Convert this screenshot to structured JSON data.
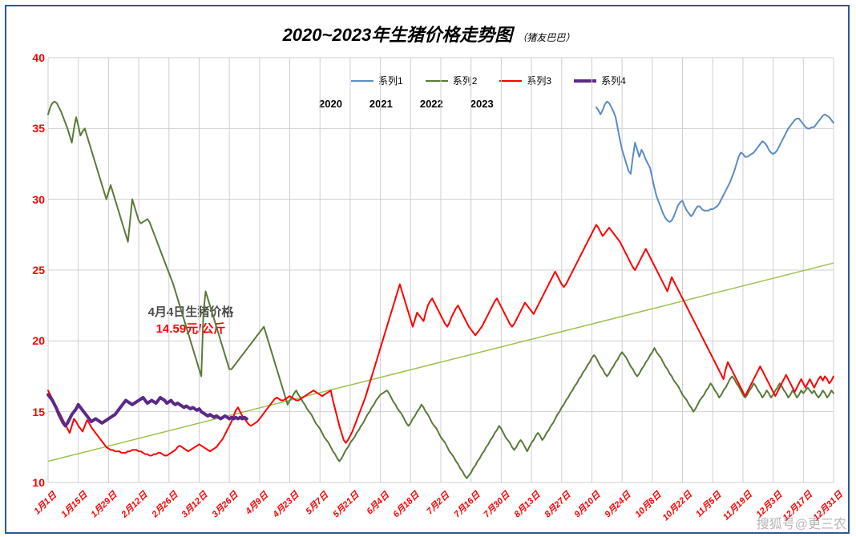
{
  "title_main": "2020~2023年生猪价格走势图",
  "title_sub": "（猪友巴巴）",
  "watermark": "搜狐号@更三农",
  "chart": {
    "type": "line",
    "background_color": "#ffffff",
    "frame_border_color": "#2a5a94",
    "axis_color": "#808080",
    "grid_color": "#cfcfcf",
    "ylim": [
      10,
      40
    ],
    "ytick_step": 5,
    "ytick_label_color": "#ff0000",
    "ytick_fontsize": 14,
    "x_n": 365,
    "xtick_labels": [
      "1月1日",
      "1月15日",
      "1月29日",
      "2月12日",
      "2月26日",
      "3月12日",
      "3月26日",
      "4月9日",
      "4月23日",
      "5月7日",
      "5月21日",
      "6月4日",
      "6月18日",
      "7月2日",
      "7月16日",
      "7月30日",
      "8月13日",
      "8月27日",
      "9月10日",
      "9月24日",
      "10月8日",
      "10月22日",
      "11月5日",
      "11月19日",
      "12月3日",
      "12月17日",
      "12月31日"
    ],
    "xtick_label_color": "#ff0000",
    "xtick_fontsize": 11,
    "trendline": {
      "color": "#9cc24d",
      "width": 1.5,
      "y_start": 11.5,
      "y_end": 25.5
    },
    "legend": {
      "items": [
        {
          "label": "系列1",
          "color": "#5b8cc4"
        },
        {
          "label": "系列2",
          "color": "#5a7a3a"
        },
        {
          "label": "系列3",
          "color": "#ff0000"
        },
        {
          "label": "系列4",
          "color": "#5a2a86"
        }
      ]
    },
    "year_labels": [
      "2020",
      "2021",
      "2022",
      "2023"
    ],
    "annotation": {
      "line1": "4月4日生猪价格",
      "line2": "14.59元/公斤"
    },
    "series": [
      {
        "name": "系列1_2020",
        "color": "#5b8cc4",
        "width": 2,
        "start_x": 254,
        "y": [
          36.5,
          36.3,
          36.0,
          36.3,
          36.7,
          36.9,
          36.8,
          36.5,
          36.2,
          35.8,
          35.0,
          34.2,
          33.5,
          33.0,
          32.5,
          32.0,
          31.8,
          33.0,
          34.0,
          33.5,
          33.0,
          33.5,
          33.2,
          32.8,
          32.5,
          32.2,
          31.5,
          30.8,
          30.2,
          29.8,
          29.4,
          29.0,
          28.7,
          28.5,
          28.4,
          28.5,
          28.8,
          29.2,
          29.6,
          29.8,
          29.9,
          29.5,
          29.2,
          29.0,
          28.8,
          29.0,
          29.3,
          29.5,
          29.5,
          29.3,
          29.2,
          29.2,
          29.2,
          29.3,
          29.3,
          29.4,
          29.5,
          29.7,
          30.0,
          30.3,
          30.6,
          30.9,
          31.2,
          31.6,
          32.0,
          32.5,
          33.0,
          33.3,
          33.2,
          33.0,
          33.0,
          33.1,
          33.2,
          33.3,
          33.5,
          33.7,
          33.9,
          34.1,
          34.0,
          33.8,
          33.5,
          33.3,
          33.2,
          33.3,
          33.5,
          33.8,
          34.1,
          34.4,
          34.7,
          35.0,
          35.2,
          35.4,
          35.6,
          35.7,
          35.7,
          35.5,
          35.3,
          35.1,
          35.0,
          35.0,
          35.1,
          35.1,
          35.3,
          35.5,
          35.7,
          35.9,
          36.0,
          35.9,
          35.8,
          35.6,
          35.4
        ]
      },
      {
        "name": "系列2_2021",
        "color": "#5a7a3a",
        "width": 2,
        "start_x": 0,
        "y": [
          36.0,
          36.5,
          36.8,
          36.9,
          36.8,
          36.5,
          36.2,
          35.8,
          35.4,
          35.0,
          34.5,
          34.0,
          35.0,
          35.8,
          35.2,
          34.5,
          34.8,
          35.0,
          34.5,
          34.0,
          33.5,
          33.0,
          32.5,
          32.0,
          31.5,
          31.0,
          30.5,
          30.0,
          30.5,
          31.0,
          30.5,
          30.0,
          29.5,
          29.0,
          28.5,
          28.0,
          27.5,
          27.0,
          28.5,
          30.0,
          29.5,
          29.0,
          28.5,
          28.3,
          28.4,
          28.5,
          28.6,
          28.4,
          28.0,
          27.6,
          27.2,
          26.8,
          26.4,
          26.0,
          25.6,
          25.2,
          24.8,
          24.4,
          24.0,
          23.5,
          23.0,
          22.5,
          22.0,
          21.5,
          21.0,
          20.5,
          20.0,
          19.5,
          19.0,
          18.5,
          18.0,
          17.5,
          22.0,
          23.5,
          23.0,
          22.5,
          22.0,
          21.5,
          21.0,
          20.5,
          20.0,
          19.5,
          19.0,
          18.5,
          18.0,
          18.0,
          18.2,
          18.4,
          18.6,
          18.8,
          19.0,
          19.2,
          19.4,
          19.6,
          19.8,
          20.0,
          20.2,
          20.4,
          20.6,
          20.8,
          21.0,
          20.5,
          20.0,
          19.5,
          19.0,
          18.5,
          18.0,
          17.5,
          17.0,
          16.5,
          16.0,
          15.5,
          15.8,
          16.0,
          16.3,
          16.5,
          16.2,
          16.0,
          15.7,
          15.5,
          15.2,
          15.0,
          14.8,
          14.5,
          14.2,
          14.0,
          13.8,
          13.5,
          13.2,
          13.0,
          12.8,
          12.5,
          12.2,
          12.0,
          11.7,
          11.5,
          11.7,
          12.0,
          12.3,
          12.5,
          12.8,
          13.0,
          13.2,
          13.5,
          13.7,
          14.0,
          14.2,
          14.5,
          14.8,
          15.0,
          15.3,
          15.5,
          15.8,
          16.0,
          16.2,
          16.3,
          16.4,
          16.5,
          16.3,
          16.0,
          15.7,
          15.5,
          15.2,
          15.0,
          14.8,
          14.5,
          14.2,
          14.0,
          14.2,
          14.5,
          14.7,
          15.0,
          15.2,
          15.5,
          15.3,
          15.0,
          14.8,
          14.5,
          14.2,
          14.0,
          13.8,
          13.5,
          13.2,
          13.0,
          12.8,
          12.5,
          12.2,
          12.0,
          11.8,
          11.5,
          11.3,
          11.0,
          10.8,
          10.5,
          10.3,
          10.5,
          10.7,
          11.0,
          11.2,
          11.5,
          11.7,
          12.0,
          12.2,
          12.5,
          12.7,
          13.0,
          13.2,
          13.5,
          13.7,
          14.0,
          13.8,
          13.5,
          13.2,
          13.0,
          12.8,
          12.5,
          12.3,
          12.5,
          12.8,
          13.0,
          12.8,
          12.5,
          12.2,
          12.5,
          12.8,
          13.0,
          13.3,
          13.5,
          13.3,
          13.0,
          13.2,
          13.5,
          13.7,
          14.0,
          14.2,
          14.5,
          14.8,
          15.0,
          15.3,
          15.5,
          15.8,
          16.0,
          16.3,
          16.5,
          16.8,
          17.0,
          17.3,
          17.5,
          17.8,
          18.0,
          18.3,
          18.5,
          18.8,
          19.0,
          18.8,
          18.5,
          18.2,
          18.0,
          17.7,
          17.5,
          17.7,
          18.0,
          18.2,
          18.5,
          18.7,
          19.0,
          19.2,
          19.0,
          18.8,
          18.5,
          18.2,
          18.0,
          17.7,
          17.5,
          17.7,
          18.0,
          18.2,
          18.5,
          18.7,
          19.0,
          19.2,
          19.5,
          19.2,
          19.0,
          18.8,
          18.5,
          18.2,
          18.0,
          17.7,
          17.5,
          17.2,
          17.0,
          16.8,
          16.5,
          16.2,
          16.0,
          15.8,
          15.5,
          15.3,
          15.0,
          15.2,
          15.5,
          15.8,
          16.0,
          16.2,
          16.5,
          16.7,
          17.0,
          16.8,
          16.5,
          16.3,
          16.0,
          16.2,
          16.5,
          16.7,
          17.0,
          17.3,
          17.5,
          17.3,
          17.0,
          16.8,
          16.5,
          16.2,
          16.0,
          16.2,
          16.5,
          16.7,
          17.0,
          16.8,
          16.5,
          16.3,
          16.0,
          16.2,
          16.5,
          16.3,
          16.0,
          16.2,
          16.5,
          16.7,
          17.0,
          16.8,
          16.5,
          16.3,
          16.0,
          16.2,
          16.5,
          16.3,
          16.0,
          16.2,
          16.5,
          16.3,
          16.5,
          16.7,
          16.5,
          16.3,
          16.5,
          16.2,
          16.0,
          16.2,
          16.5,
          16.3,
          16.0,
          16.2,
          16.5,
          16.3
        ]
      },
      {
        "name": "系列3_2022",
        "color": "#ff0000",
        "width": 2,
        "start_x": 0,
        "y": [
          16.5,
          16.2,
          15.9,
          15.6,
          15.3,
          15.0,
          14.7,
          14.4,
          14.1,
          13.8,
          13.5,
          14.0,
          14.5,
          14.3,
          14.0,
          13.8,
          13.6,
          14.0,
          14.4,
          14.2,
          13.9,
          13.7,
          13.5,
          13.3,
          13.1,
          12.9,
          12.7,
          12.5,
          12.4,
          12.3,
          12.3,
          12.2,
          12.2,
          12.2,
          12.1,
          12.1,
          12.1,
          12.2,
          12.2,
          12.3,
          12.3,
          12.3,
          12.2,
          12.2,
          12.1,
          12.0,
          12.0,
          11.9,
          11.9,
          12.0,
          12.0,
          12.1,
          12.1,
          12.0,
          11.9,
          11.9,
          12.0,
          12.1,
          12.2,
          12.3,
          12.5,
          12.6,
          12.5,
          12.4,
          12.3,
          12.2,
          12.3,
          12.4,
          12.5,
          12.6,
          12.7,
          12.6,
          12.5,
          12.4,
          12.3,
          12.2,
          12.3,
          12.4,
          12.5,
          12.7,
          12.9,
          13.1,
          13.4,
          13.7,
          14.0,
          14.3,
          14.7,
          15.1,
          15.3,
          15.0,
          14.7,
          14.5,
          14.3,
          14.1,
          14.0,
          14.1,
          14.2,
          14.3,
          14.5,
          14.7,
          14.9,
          15.1,
          15.3,
          15.5,
          15.7,
          15.9,
          16.0,
          15.9,
          15.8,
          15.8,
          15.9,
          16.0,
          16.1,
          16.0,
          15.9,
          15.8,
          15.8,
          15.9,
          16.0,
          16.1,
          16.2,
          16.3,
          16.4,
          16.5,
          16.4,
          16.3,
          16.2,
          16.1,
          16.2,
          16.3,
          16.4,
          16.5,
          15.8,
          15.2,
          14.6,
          14.0,
          13.5,
          13.0,
          12.8,
          13.0,
          13.3,
          13.6,
          14.0,
          14.4,
          14.8,
          15.2,
          15.6,
          16.0,
          16.5,
          17.0,
          17.5,
          18.0,
          18.5,
          19.0,
          19.5,
          20.0,
          20.5,
          21.0,
          21.5,
          22.0,
          22.5,
          23.0,
          23.5,
          24.0,
          23.5,
          23.0,
          22.5,
          22.0,
          21.5,
          21.0,
          21.5,
          22.0,
          21.8,
          21.6,
          21.4,
          22.0,
          22.5,
          22.8,
          23.0,
          22.7,
          22.4,
          22.1,
          21.8,
          21.5,
          21.2,
          21.0,
          21.3,
          21.7,
          22.0,
          22.3,
          22.5,
          22.2,
          21.9,
          21.6,
          21.3,
          21.0,
          20.8,
          20.6,
          20.4,
          20.6,
          20.8,
          21.0,
          21.3,
          21.6,
          21.9,
          22.2,
          22.5,
          22.8,
          23.0,
          22.7,
          22.4,
          22.1,
          21.8,
          21.5,
          21.2,
          21.0,
          21.2,
          21.5,
          21.8,
          22.1,
          22.4,
          22.7,
          22.5,
          22.3,
          22.1,
          21.9,
          22.2,
          22.5,
          22.8,
          23.1,
          23.4,
          23.7,
          24.0,
          24.3,
          24.6,
          24.9,
          24.6,
          24.3,
          24.0,
          23.8,
          24.0,
          24.3,
          24.6,
          24.9,
          25.2,
          25.5,
          25.8,
          26.1,
          26.4,
          26.7,
          27.0,
          27.3,
          27.6,
          27.9,
          28.2,
          28.0,
          27.7,
          27.4,
          27.6,
          27.8,
          28.0,
          27.8,
          27.6,
          27.4,
          27.2,
          27.0,
          26.7,
          26.4,
          26.1,
          25.8,
          25.5,
          25.2,
          25.0,
          25.3,
          25.6,
          25.9,
          26.2,
          26.5,
          26.2,
          25.9,
          25.6,
          25.3,
          25.0,
          24.7,
          24.4,
          24.1,
          23.8,
          23.5,
          24.0,
          24.5,
          24.2,
          23.9,
          23.6,
          23.3,
          23.0,
          22.7,
          22.4,
          22.1,
          21.8,
          21.5,
          21.2,
          20.9,
          20.6,
          20.3,
          20.0,
          19.7,
          19.4,
          19.1,
          18.8,
          18.5,
          18.2,
          17.9,
          17.6,
          17.3,
          18.0,
          18.5,
          18.2,
          17.9,
          17.6,
          17.3,
          17.0,
          16.7,
          16.4,
          16.1,
          16.4,
          16.7,
          17.0,
          17.3,
          17.6,
          17.9,
          18.2,
          17.9,
          17.6,
          17.3,
          17.0,
          16.7,
          16.4,
          16.1,
          16.4,
          16.7,
          17.0,
          17.3,
          17.6,
          17.3,
          17.0,
          16.7,
          16.4,
          16.7,
          17.0,
          17.3,
          17.0,
          16.7,
          17.0,
          17.3,
          17.0,
          16.7,
          17.0,
          17.3,
          17.5,
          17.2,
          17.5,
          17.3,
          17.0,
          17.2,
          17.5
        ]
      },
      {
        "name": "系列4_2023",
        "color": "#5a2a86",
        "width": 4,
        "start_x": 0,
        "y": [
          16.2,
          16.0,
          15.8,
          15.5,
          15.2,
          14.8,
          14.5,
          14.2,
          14.0,
          14.2,
          14.5,
          14.8,
          15.0,
          15.2,
          15.5,
          15.3,
          15.1,
          14.9,
          14.7,
          14.5,
          14.3,
          14.4,
          14.5,
          14.4,
          14.3,
          14.2,
          14.3,
          14.4,
          14.5,
          14.6,
          14.7,
          14.8,
          15.0,
          15.2,
          15.4,
          15.6,
          15.8,
          15.7,
          15.6,
          15.5,
          15.6,
          15.7,
          15.8,
          15.9,
          16.0,
          15.8,
          15.6,
          15.7,
          15.8,
          15.7,
          15.6,
          15.8,
          16.0,
          15.9,
          15.8,
          15.6,
          15.7,
          15.8,
          15.6,
          15.5,
          15.6,
          15.5,
          15.4,
          15.3,
          15.4,
          15.3,
          15.2,
          15.3,
          15.2,
          15.1,
          15.2,
          15.0,
          14.9,
          14.8,
          14.7,
          14.8,
          14.7,
          14.6,
          14.7,
          14.6,
          14.5,
          14.6,
          14.7,
          14.6,
          14.5,
          14.6,
          14.5,
          14.6,
          14.5,
          14.6,
          14.5,
          14.6,
          14.5
        ]
      }
    ]
  }
}
